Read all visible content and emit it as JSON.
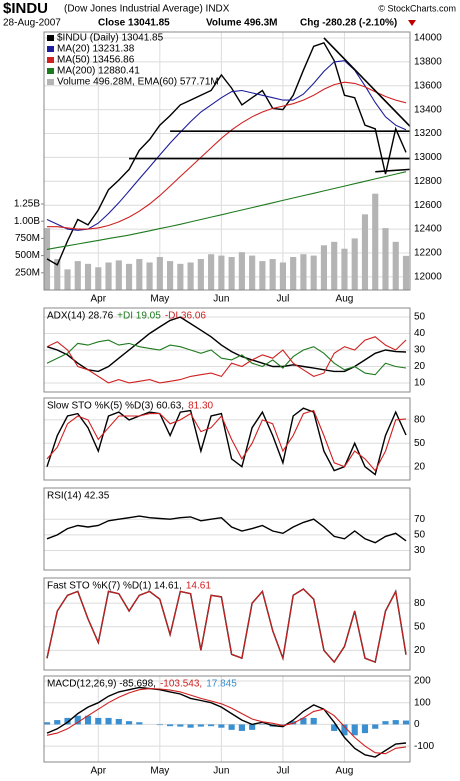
{
  "header": {
    "symbol": "$INDU",
    "name": "(Dow Jones Industrial Average) INDX",
    "source": "© StockCharts.com",
    "date": "28-Aug-2007",
    "close": "Close 13041.85",
    "volume": "Volume 496.3M",
    "change": "Chg -280.28 (-2.10%)"
  },
  "chart_data": [
    {
      "type": "line",
      "legend": "top-left",
      "grid": true,
      "categories": [
        null,
        null,
        null,
        null,
        null,
        "Apr",
        null,
        null,
        null,
        null,
        null,
        "May",
        null,
        null,
        null,
        null,
        null,
        "Jun",
        null,
        null,
        null,
        null,
        null,
        "Jul",
        null,
        null,
        null,
        null,
        null,
        "Aug",
        null,
        null,
        null,
        null,
        null,
        null
      ],
      "ylim": [
        11890,
        14050
      ],
      "yticks": [
        12000,
        12200,
        12400,
        12600,
        12800,
        13000,
        13200,
        13400,
        13600,
        13800,
        14000
      ],
      "y2lim": [
        0,
        3750000000
      ],
      "y2ticks": [
        {
          "value": 250000000,
          "label": "250M"
        },
        {
          "value": 500000000,
          "label": "500M"
        },
        {
          "value": 750000000,
          "label": "750M"
        },
        {
          "value": 1000000000,
          "label": "1.00B"
        },
        {
          "value": 1250000000,
          "label": "1.25B"
        }
      ],
      "series": [
        {
          "name": "$INDU (Daily) 13041.85",
          "color": "#000000",
          "values": [
            12150,
            12100,
            12300,
            12480,
            12435,
            12560,
            12730,
            12810,
            12900,
            13060,
            13150,
            13270,
            13350,
            13440,
            13480,
            13520,
            13560,
            13690,
            13580,
            13440,
            13500,
            13560,
            13410,
            13400,
            13520,
            13730,
            13930,
            13960,
            13810,
            13520,
            13500,
            13270,
            13240,
            12860,
            13240,
            13041.85
          ]
        },
        {
          "name": "MA(20) 13231.38",
          "color": "#1c1c9c",
          "values": [
            12480,
            12440,
            12400,
            12390,
            12400,
            12450,
            12530,
            12620,
            12720,
            12820,
            12920,
            13020,
            13120,
            13210,
            13300,
            13380,
            13440,
            13500,
            13550,
            13560,
            13540,
            13520,
            13500,
            13480,
            13480,
            13530,
            13620,
            13720,
            13800,
            13810,
            13730,
            13600,
            13460,
            13340,
            13270,
            13231.38
          ]
        },
        {
          "name": "MA(50) 13456.86",
          "color": "#d02020",
          "values": [
            12420,
            12420,
            12410,
            12400,
            12400,
            12410,
            12430,
            12460,
            12500,
            12550,
            12610,
            12680,
            12760,
            12840,
            12920,
            13000,
            13080,
            13160,
            13230,
            13290,
            13340,
            13380,
            13410,
            13430,
            13450,
            13480,
            13520,
            13570,
            13610,
            13630,
            13620,
            13590,
            13550,
            13510,
            13480,
            13456.86
          ]
        },
        {
          "name": "MA(200) 12880.41",
          "color": "#1e7a1e",
          "values": [
            12230,
            12245,
            12260,
            12275,
            12290,
            12305,
            12320,
            12335,
            12350,
            12368,
            12386,
            12404,
            12422,
            12440,
            12460,
            12480,
            12500,
            12520,
            12540,
            12560,
            12580,
            12600,
            12620,
            12640,
            12660,
            12680,
            12700,
            12720,
            12740,
            12760,
            12780,
            12800,
            12820,
            12840,
            12860,
            12880.41
          ]
        },
        {
          "name": "Volume 496.28M, EMA(60) 577.71M",
          "type": "bar",
          "axis": "y2",
          "color": "#b4b4b4",
          "values": [
            900000000,
            450000000,
            300000000,
            420000000,
            380000000,
            330000000,
            400000000,
            430000000,
            380000000,
            450000000,
            400000000,
            480000000,
            420000000,
            380000000,
            400000000,
            450000000,
            520000000,
            500000000,
            480000000,
            550000000,
            500000000,
            420000000,
            450000000,
            400000000,
            480000000,
            520000000,
            500000000,
            650000000,
            700000000,
            600000000,
            750000000,
            1100000000,
            1400000000,
            900000000,
            700000000,
            496280000
          ]
        }
      ],
      "trendlines": [
        {
          "x": [
            12,
            35
          ],
          "y": [
            13220,
            13220
          ]
        },
        {
          "x": [
            8,
            35
          ],
          "y": [
            12990,
            12990
          ]
        },
        {
          "x": [
            32,
            35
          ],
          "y": [
            12880,
            12900
          ]
        },
        {
          "x": [
            27,
            35
          ],
          "y": [
            14000,
            13260
          ]
        }
      ]
    },
    {
      "type": "line",
      "legend": "top-left",
      "grid": true,
      "ylim": [
        4.5,
        55.5
      ],
      "yticks": [
        10,
        20,
        30,
        40,
        50
      ],
      "series": [
        {
          "name": "ADX(14) 28.76",
          "color": "#000000",
          "values": [
            32,
            30,
            27,
            22,
            18,
            17,
            20,
            25,
            30,
            35,
            40,
            44,
            48,
            50,
            46,
            42,
            38,
            33,
            29,
            26,
            24,
            22,
            20,
            20,
            21,
            20,
            19,
            18,
            17,
            17,
            20,
            24,
            28,
            30,
            29,
            28.76
          ]
        },
        {
          "name": "+DI 19.05",
          "color": "#1e7a1e",
          "values": [
            22,
            25,
            28,
            34,
            33,
            35,
            36,
            33,
            34,
            32,
            31,
            30,
            33,
            32,
            30,
            28,
            30,
            25,
            24,
            27,
            22,
            20,
            24,
            19,
            26,
            30,
            32,
            28,
            22,
            18,
            20,
            16,
            15,
            22,
            20,
            19.05
          ]
        },
        {
          "name": "-DI 36.06",
          "color": "#d02020",
          "values": [
            32,
            35,
            30,
            20,
            18,
            14,
            10,
            12,
            10,
            11,
            12,
            10,
            11,
            12,
            14,
            15,
            16,
            14,
            22,
            20,
            24,
            27,
            25,
            30,
            22,
            18,
            14,
            16,
            28,
            32,
            30,
            36,
            38,
            33,
            30,
            36.06
          ]
        }
      ]
    },
    {
      "type": "line",
      "legend": "top-left",
      "grid": true,
      "ylim": [
        3,
        108
      ],
      "yticks": [
        20,
        50,
        80
      ],
      "series": [
        {
          "name": "Slow STO %K(5) %D(3) 60.63,",
          "color": "#000000",
          "values": [
            20,
            60,
            85,
            88,
            70,
            40,
            85,
            90,
            80,
            85,
            90,
            88,
            60,
            90,
            92,
            40,
            85,
            88,
            30,
            20,
            70,
            90,
            60,
            25,
            85,
            95,
            90,
            40,
            15,
            20,
            50,
            20,
            10,
            60,
            90,
            60.63
          ]
        },
        {
          "name": "81.30",
          "color": "#d02020",
          "values": [
            30,
            45,
            75,
            85,
            80,
            55,
            70,
            85,
            85,
            85,
            88,
            88,
            75,
            80,
            88,
            65,
            70,
            85,
            55,
            30,
            50,
            80,
            75,
            40,
            60,
            88,
            92,
            60,
            25,
            20,
            40,
            30,
            15,
            40,
            80,
            81.3
          ]
        }
      ]
    },
    {
      "type": "line",
      "legend": "top-left",
      "grid": true,
      "ylim": [
        5,
        110
      ],
      "yticks": [
        30,
        50,
        70
      ],
      "series": [
        {
          "name": "RSI(14) 42.35",
          "color": "#000000",
          "values": [
            45,
            50,
            58,
            62,
            60,
            62,
            68,
            70,
            72,
            74,
            72,
            71,
            70,
            72,
            73,
            68,
            70,
            72,
            60,
            55,
            58,
            62,
            55,
            52,
            60,
            66,
            70,
            60,
            48,
            45,
            55,
            45,
            40,
            48,
            52,
            42.35
          ]
        }
      ]
    },
    {
      "type": "line",
      "legend": "top-left",
      "grid": true,
      "ylim": [
        -5,
        112
      ],
      "yticks": [
        20,
        50,
        80
      ],
      "series": [
        {
          "name": "Fast STO %K(7) %D(1) 14.61,",
          "color": "#000000",
          "values": [
            10,
            70,
            90,
            95,
            60,
            30,
            95,
            92,
            70,
            90,
            95,
            85,
            40,
            95,
            92,
            20,
            90,
            88,
            15,
            10,
            80,
            95,
            45,
            10,
            90,
            98,
            85,
            20,
            5,
            25,
            70,
            10,
            5,
            70,
            95,
            14.61
          ]
        },
        {
          "name": "14.61",
          "color": "#d02020",
          "values": [
            10,
            70,
            90,
            95,
            60,
            30,
            95,
            92,
            70,
            90,
            95,
            85,
            40,
            95,
            92,
            20,
            90,
            88,
            15,
            10,
            80,
            95,
            45,
            10,
            90,
            98,
            85,
            20,
            5,
            25,
            70,
            10,
            5,
            70,
            95,
            14.61
          ]
        }
      ]
    },
    {
      "type": "line",
      "legend": "top-left",
      "grid": true,
      "ylim": [
        -173,
        223
      ],
      "yticks": [
        -100,
        0,
        100,
        200
      ],
      "categories": [
        null,
        null,
        null,
        null,
        null,
        "Apr",
        null,
        null,
        null,
        null,
        null,
        "May",
        null,
        null,
        null,
        null,
        null,
        "Jun",
        null,
        null,
        null,
        null,
        null,
        "Jul",
        null,
        null,
        null,
        null,
        null,
        "Aug",
        null,
        null,
        null,
        null,
        null,
        null
      ],
      "series": [
        {
          "name": "MACD(12,26,9) -85.698,",
          "color": "#000000",
          "values": [
            -40,
            -20,
            10,
            50,
            80,
            100,
            130,
            150,
            160,
            170,
            165,
            160,
            150,
            140,
            120,
            110,
            100,
            80,
            50,
            20,
            0,
            10,
            -5,
            -10,
            20,
            60,
            90,
            70,
            10,
            -60,
            -110,
            -140,
            -150,
            -120,
            -90,
            -85.698
          ]
        },
        {
          "name": "-103.543,",
          "color": "#d02020",
          "values": [
            -50,
            -40,
            -20,
            10,
            40,
            70,
            100,
            125,
            145,
            160,
            165,
            163,
            158,
            150,
            135,
            120,
            108,
            95,
            75,
            50,
            25,
            12,
            5,
            -5,
            5,
            30,
            60,
            70,
            40,
            -10,
            -60,
            -100,
            -130,
            -135,
            -110,
            -103.543
          ]
        },
        {
          "name": "17.845",
          "type": "bar",
          "color": "#3a8fd0",
          "values": [
            10,
            20,
            30,
            40,
            40,
            30,
            30,
            25,
            15,
            10,
            0,
            -3,
            -8,
            -10,
            -15,
            -10,
            -8,
            -15,
            -25,
            -30,
            -25,
            -2,
            -10,
            -5,
            15,
            30,
            30,
            0,
            -30,
            -50,
            -50,
            -40,
            -20,
            15,
            20,
            17.845
          ]
        }
      ]
    }
  ]
}
